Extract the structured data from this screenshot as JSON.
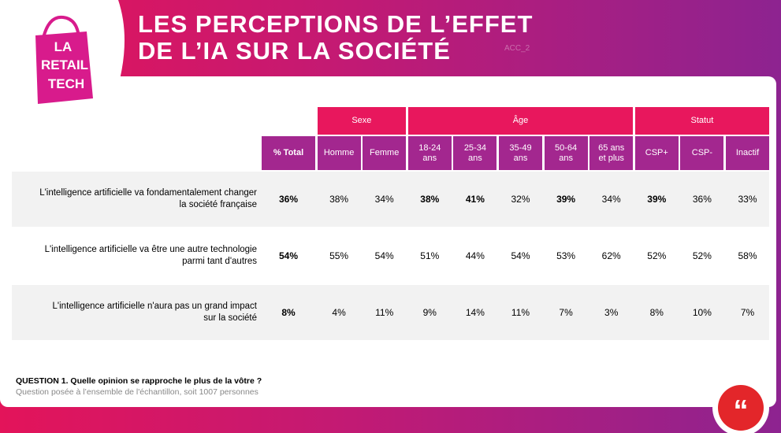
{
  "header": {
    "title_lines": [
      "LES PERCEPTIONS DE L’EFFET",
      "DE L’IA SUR LA SOCIÉTÉ"
    ],
    "watermark": "ACC_2",
    "logo_lines": [
      "LA",
      "RETAIL",
      "TECH"
    ]
  },
  "table": {
    "groups": [
      {
        "label": "Sexe",
        "span": 2
      },
      {
        "label": "Âge",
        "span": 5
      },
      {
        "label": "Statut",
        "span": 3
      }
    ],
    "columns": [
      [
        "% Total"
      ],
      [
        "Homme"
      ],
      [
        "Femme"
      ],
      [
        "18-24",
        "ans"
      ],
      [
        "25-34",
        "ans"
      ],
      [
        "35-49",
        "ans"
      ],
      [
        "50-64",
        "ans"
      ],
      [
        "65 ans",
        "et plus"
      ],
      [
        "CSP+"
      ],
      [
        "CSP-"
      ],
      [
        "Inactif"
      ]
    ],
    "rows": [
      {
        "label": [
          "L'intelligence artificielle va fondamentalement changer",
          "la société française"
        ],
        "cells": [
          "36%",
          "38%",
          "34%",
          "38%",
          "41%",
          "32%",
          "39%",
          "34%",
          "39%",
          "36%",
          "33%"
        ],
        "bold": [
          0,
          3,
          4,
          6,
          8
        ]
      },
      {
        "label": [
          "L'intelligence artificielle va être une autre technologie",
          "parmi tant d'autres"
        ],
        "cells": [
          "54%",
          "55%",
          "54%",
          "51%",
          "44%",
          "54%",
          "53%",
          "62%",
          "52%",
          "52%",
          "58%"
        ],
        "bold": [
          0
        ]
      },
      {
        "label": [
          "L'intelligence artificielle n'aura pas un grand impact",
          "sur la société"
        ],
        "cells": [
          "8%",
          "4%",
          "11%",
          "9%",
          "14%",
          "11%",
          "7%",
          "3%",
          "8%",
          "10%",
          "7%"
        ],
        "bold": [
          0
        ]
      }
    ]
  },
  "footer": {
    "question": "QUESTION 1. Quelle opinion se rapproche le plus de la vôtre ?",
    "note": "Question posée à l’ensemble de l'échantillon, soit 1007 personnes"
  }
}
